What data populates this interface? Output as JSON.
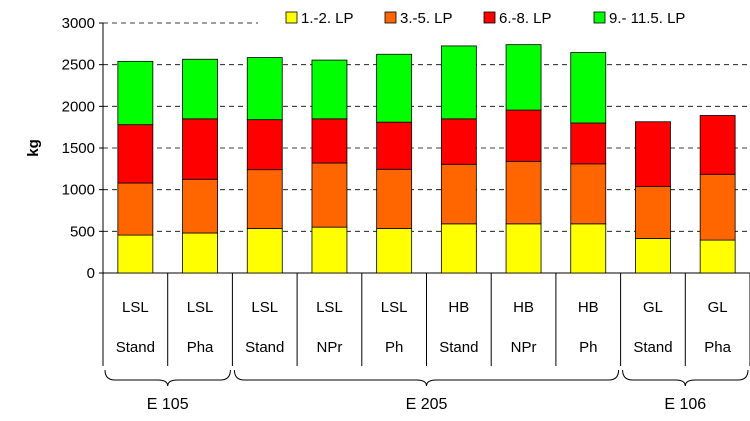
{
  "chart_data": {
    "type": "bar",
    "stacked": true,
    "ylabel": "kg",
    "ylim": [
      0,
      3000
    ],
    "yticks": [
      0,
      500,
      1000,
      1500,
      2000,
      2500,
      3000
    ],
    "grid": true,
    "legend_position": "top-right",
    "categories": [
      {
        "breed": "LSL",
        "feed": "Stand"
      },
      {
        "breed": "LSL",
        "feed": "Pha"
      },
      {
        "breed": "LSL",
        "feed": "Stand"
      },
      {
        "breed": "LSL",
        "feed": "NPr"
      },
      {
        "breed": "LSL",
        "feed": "Ph"
      },
      {
        "breed": "HB",
        "feed": "Stand"
      },
      {
        "breed": "HB",
        "feed": "NPr"
      },
      {
        "breed": "HB",
        "feed": "Ph"
      },
      {
        "breed": "GL",
        "feed": "Stand"
      },
      {
        "breed": "GL",
        "feed": "Pha"
      }
    ],
    "groups": [
      {
        "label": "E 105",
        "from": 0,
        "to": 1
      },
      {
        "label": "E 205",
        "from": 2,
        "to": 7
      },
      {
        "label": "E 106",
        "from": 8,
        "to": 9
      }
    ],
    "series": [
      {
        "name": "1.-2. LP",
        "color": "#ffff00",
        "values": [
          455,
          480,
          535,
          550,
          535,
          590,
          590,
          590,
          415,
          395
        ]
      },
      {
        "name": "3.-5. LP",
        "color": "#ff6600",
        "values": [
          625,
          645,
          705,
          770,
          710,
          715,
          750,
          720,
          625,
          790
        ]
      },
      {
        "name": "6.-8. LP",
        "color": "#ff0000",
        "values": [
          700,
          725,
          600,
          530,
          565,
          545,
          615,
          490,
          775,
          705
        ]
      },
      {
        "name": "9.- 11.5. LP",
        "color": "#00ff00",
        "values": [
          760,
          715,
          745,
          705,
          815,
          875,
          785,
          845,
          0,
          0
        ]
      }
    ]
  }
}
